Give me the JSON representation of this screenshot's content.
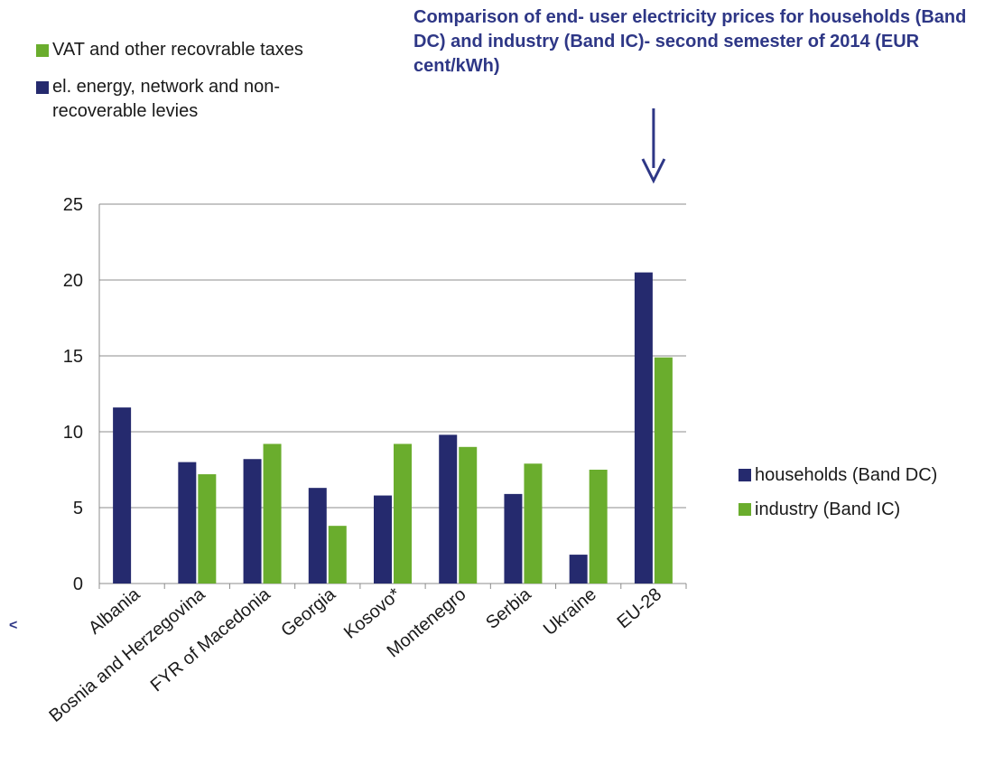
{
  "chart_data": {
    "type": "bar",
    "title": "Comparison of end- user electricity prices for households (Band DC) and industry (Band IC)- second semester of 2014 (EUR cent/kWh)",
    "categories": [
      "Albania",
      "Bosnia and Herzegovina",
      "FYR of Macedonia",
      "Georgia",
      "Kosovo*",
      "Montenegro",
      "Serbia",
      "Ukraine",
      "EU-28"
    ],
    "series": [
      {
        "name": "households (Band DC)",
        "color": "#252a6e",
        "values": [
          11.6,
          8.0,
          8.2,
          6.3,
          5.8,
          9.8,
          5.9,
          1.9,
          20.5
        ]
      },
      {
        "name": "industry (Band IC)",
        "color": "#6aad2d",
        "values": [
          null,
          7.2,
          9.2,
          3.8,
          9.2,
          9.0,
          7.9,
          7.5,
          14.9
        ]
      }
    ],
    "yticks": [
      "0",
      "5",
      "10",
      "15",
      "20",
      "25"
    ],
    "ylim": [
      0,
      25
    ],
    "grid": true,
    "legend_top": [
      {
        "label": "VAT and other recovrable taxes",
        "color": "#6aad2d"
      },
      {
        "label": "el. energy, network and non- recoverable levies",
        "color": "#252a6e"
      }
    ],
    "legend_right": [
      {
        "label": "households (Band DC)",
        "color": "#252a6e"
      },
      {
        "label": "industry (Band IC)",
        "color": "#6aad2d"
      }
    ],
    "annotation": "arrow pointing to EU-28"
  },
  "stray_marks": [
    "<"
  ]
}
